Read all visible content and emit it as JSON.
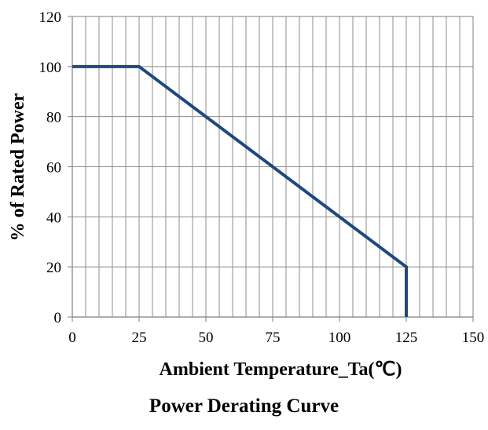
{
  "chart_data": {
    "type": "line",
    "caption": "Power Derating Curve",
    "xlabel": "Ambient  Temperature_Ta(℃)",
    "ylabel": "% of Rated Power",
    "xlim": [
      0,
      150
    ],
    "ylim": [
      0,
      120
    ],
    "x_ticks": [
      0,
      25,
      50,
      75,
      100,
      125,
      150
    ],
    "y_ticks": [
      0,
      20,
      40,
      60,
      80,
      100,
      120
    ],
    "x_minor_step": 5,
    "grid": true,
    "series": [
      {
        "color": "#1f497d",
        "points": [
          {
            "x": 0,
            "y": 100
          },
          {
            "x": 25,
            "y": 100
          },
          {
            "x": 125,
            "y": 20
          },
          {
            "x": 125,
            "y": 0
          }
        ]
      }
    ]
  }
}
